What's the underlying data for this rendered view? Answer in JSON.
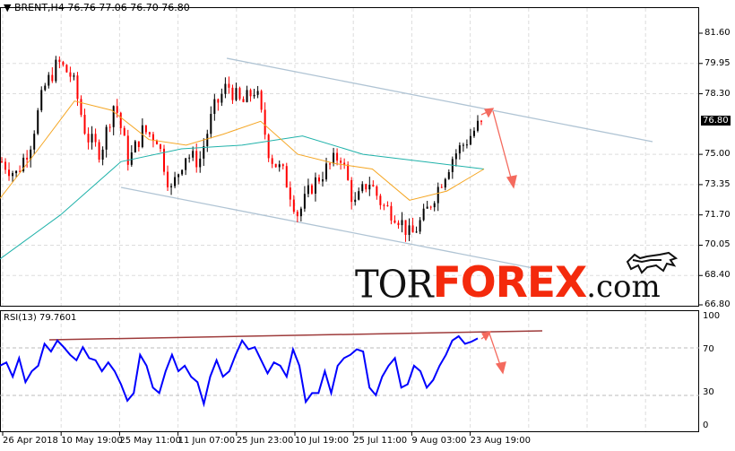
{
  "header": {
    "symbol": "BRENT,H4",
    "ohlc": "76.76 77.06 76.70 76.80"
  },
  "rsi": {
    "label": "RSI(13) 79.7601"
  },
  "current_price": "76.80",
  "logo": {
    "part1": "TOR",
    "part2": "FOREX",
    "part3": ".com"
  },
  "colors": {
    "bull": "#000000",
    "bear": "#ff0000",
    "ma_fast": "#f5a623",
    "ma_slow": "#20b2aa",
    "channel": "#b0c4d4",
    "arrow": "#f46a5e",
    "rsi": "#0000ff",
    "rsi_trend": "#9e3b3b"
  },
  "chart_data": [
    {
      "type": "candlestick",
      "symbol": "BRENT",
      "timeframe": "H4",
      "y_ticks": [
        "81.60",
        "79.95",
        "78.30",
        "75.00",
        "73.35",
        "71.70",
        "70.05",
        "68.40",
        "66.80"
      ],
      "ylim": [
        66.8,
        82.9
      ],
      "x_ticks": [
        "26 Apr 2018",
        "10 May 19:00",
        "25 May 11:00",
        "11 Jun 07:00",
        "25 Jun 23:00",
        "10 Jul 19:00",
        "25 Jul 11:00",
        "9 Aug 03:00",
        "23 Aug 19:00"
      ],
      "close_path": [
        74.6,
        73.9,
        75.5,
        78.6,
        80.0,
        79.2,
        76.0,
        75.1,
        77.9,
        74.6,
        76.3,
        75.9,
        73.0,
        75.0,
        74.6,
        77.4,
        78.8,
        77.7,
        78.6,
        74.9,
        73.9,
        71.7,
        73.3,
        74.2,
        75.0,
        72.2,
        73.6,
        72.2,
        71.7,
        70.5,
        71.7,
        73.3,
        74.9,
        75.8,
        76.8
      ],
      "ma_fast": [
        72.6,
        75.2,
        77.9,
        77.4,
        75.8,
        75.5,
        76.1,
        76.8,
        75.0,
        74.5,
        74.2,
        72.5,
        73.0,
        74.2
      ],
      "ma_slow": [
        69.3,
        71.7,
        74.6,
        75.3,
        75.5,
        76.0,
        75.0,
        74.6,
        74.2
      ]
    },
    {
      "type": "line",
      "name": "RSI(13)",
      "ylim": [
        0,
        100
      ],
      "y_ticks": [
        "100",
        "70",
        "30",
        "0"
      ],
      "values": [
        55,
        58,
        45,
        62,
        40,
        50,
        55,
        75,
        68,
        78,
        72,
        65,
        60,
        72,
        62,
        60,
        50,
        58,
        50,
        38,
        23,
        30,
        65,
        55,
        35,
        30,
        50,
        65,
        50,
        55,
        45,
        40,
        20,
        45,
        60,
        45,
        50,
        65,
        78,
        70,
        72,
        60,
        48,
        58,
        55,
        45,
        70,
        55,
        22,
        30,
        30,
        50,
        30,
        55,
        62,
        65,
        70,
        68,
        35,
        28,
        45,
        55,
        62,
        35,
        38,
        55,
        50,
        35,
        42,
        55,
        65,
        78,
        82,
        75,
        77,
        80
      ]
    }
  ]
}
